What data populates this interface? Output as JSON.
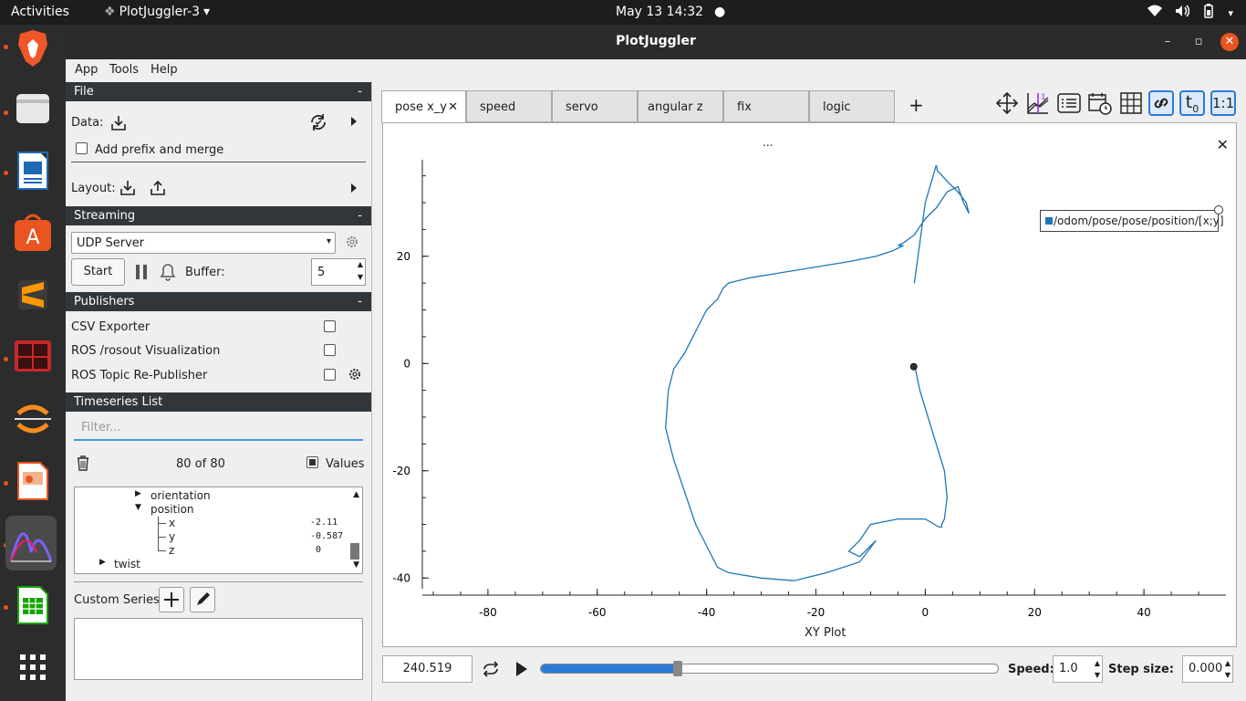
{
  "topbar": {
    "activities": "Activities",
    "app_menu": "PlotJuggler-3",
    "clock": "May 13  14:32"
  },
  "window": {
    "title": "PlotJuggler"
  },
  "menubar": {
    "items": [
      "App",
      "Tools",
      "Help"
    ]
  },
  "file_section": {
    "header": "File",
    "collapse": "-",
    "data_label": "Data:",
    "prefix_label": "Add prefix and merge",
    "layout_label": "Layout:"
  },
  "streaming_section": {
    "header": "Streaming",
    "collapse": "-",
    "source": "UDP Server",
    "start_label": "Start",
    "buffer_label": "Buffer:",
    "buffer_value": "5"
  },
  "publishers_section": {
    "header": "Publishers",
    "collapse": "-",
    "items": [
      "CSV Exporter",
      "ROS /rosout Visualization",
      "ROS Topic Re-Publisher"
    ]
  },
  "timeseries_section": {
    "header": "Timeseries List",
    "filter_placeholder": "Filter...",
    "count": "80 of 80",
    "values_label": "Values",
    "tree": [
      {
        "name": "orientation",
        "value": ""
      },
      {
        "name": "position",
        "value": ""
      },
      {
        "name": "x",
        "value": "-2.11"
      },
      {
        "name": "y",
        "value": "-0.587"
      },
      {
        "name": "z",
        "value": "0"
      },
      {
        "name": "twist",
        "value": ""
      }
    ],
    "custom_series_label": "Custom Series:"
  },
  "tabs": [
    "pose x_y",
    "speed",
    "servo",
    "angular z",
    "fix",
    "logic"
  ],
  "add_tab": "+",
  "plot": {
    "top_label": "...",
    "legend": "/odom/pose/pose/position/[x;y]",
    "x_title": "XY Plot",
    "x_ticks": [
      "-80",
      "-60",
      "-40",
      "-20",
      "0",
      "20",
      "40"
    ],
    "y_ticks": [
      "20",
      "0",
      "-20",
      "-40"
    ],
    "line_color": "#1f77b4"
  },
  "chart_data": {
    "type": "line",
    "title": "",
    "xlabel": "XY Plot",
    "ylabel": "",
    "xlim": [
      -92,
      55
    ],
    "ylim": [
      -42,
      38
    ],
    "series": [
      {
        "name": "/odom/pose/pose/position/[x;y]",
        "x": [
          -2,
          -1,
          0.5,
          2,
          3.5,
          4,
          3.5,
          3,
          3,
          2.5,
          0,
          -5,
          -10,
          -12,
          -14,
          -12,
          -9,
          -12,
          -18,
          -24,
          -30,
          -36,
          -38,
          -40,
          -42,
          -44,
          -46,
          -47.5,
          -47,
          -46,
          -44,
          -42,
          -40,
          -38,
          -37,
          -36,
          -32,
          -26,
          -20,
          -14,
          -9,
          -6,
          -4,
          -5,
          -4,
          -2,
          0,
          2,
          4,
          6,
          7,
          8,
          7.5,
          6,
          4,
          2.2,
          2,
          0,
          -2
        ],
        "y": [
          0,
          -5,
          -10,
          -15,
          -20,
          -25,
          -29,
          -30,
          -30.5,
          -30.5,
          -29,
          -29,
          -30,
          -33,
          -35,
          -36,
          -33,
          -37,
          -39,
          -40.5,
          -40,
          -39,
          -38,
          -34,
          -30,
          -24,
          -18,
          -12,
          -5,
          -1,
          2,
          6,
          10,
          12,
          14,
          15,
          16,
          17,
          18,
          19,
          20,
          21,
          22,
          22,
          22.5,
          24,
          27,
          29,
          32,
          33,
          30,
          28,
          30,
          32,
          34,
          36,
          37,
          30,
          15
        ]
      }
    ]
  },
  "bottom": {
    "time": "240.519",
    "progress": 0.3,
    "speed_label": "Speed:",
    "speed_value": "1.0",
    "step_label": "Step size:",
    "step_value": "0.000"
  }
}
